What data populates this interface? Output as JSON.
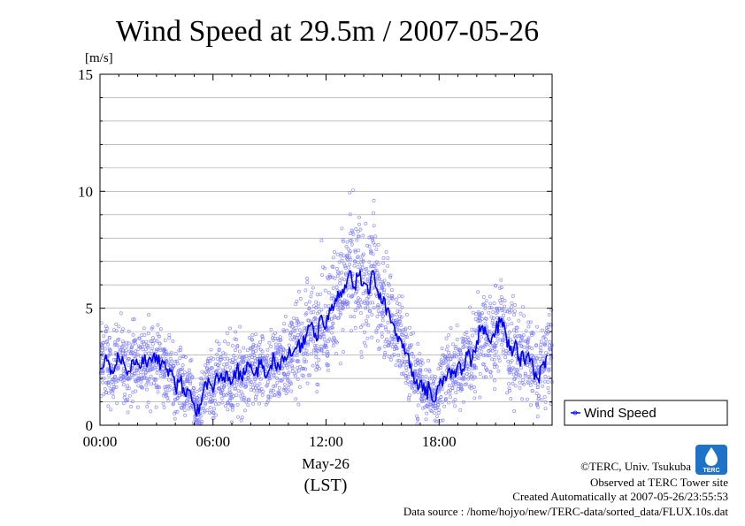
{
  "chart_data": {
    "type": "scatter",
    "title": "Wind Speed at 29.5m / 2007-05-26",
    "ylabel": "[m/s]",
    "xlabel_date": "May-26",
    "xlabel_tz": "(LST)",
    "ylim": [
      0,
      15
    ],
    "yticks": [
      0,
      5,
      10,
      15
    ],
    "xlim_hours": [
      0,
      24
    ],
    "xticks": [
      {
        "hour": 0,
        "label": "00:00"
      },
      {
        "hour": 6,
        "label": "06:00"
      },
      {
        "hour": 12,
        "label": "12:00"
      },
      {
        "hour": 18,
        "label": "18:00"
      }
    ],
    "grid": true,
    "legend": {
      "label": "Wind Speed",
      "placement": "bottom-right outside"
    },
    "colors": {
      "line": "#0000ff",
      "points": "#7a7aff",
      "grid": "#999999"
    },
    "series": [
      {
        "name": "Wind Speed",
        "x_hours": [
          0.0,
          0.25,
          0.5,
          0.75,
          1.0,
          1.25,
          1.5,
          1.75,
          2.0,
          2.25,
          2.5,
          2.75,
          3.0,
          3.25,
          3.5,
          3.75,
          4.0,
          4.25,
          4.5,
          4.75,
          5.0,
          5.25,
          5.5,
          5.75,
          6.0,
          6.25,
          6.5,
          6.75,
          7.0,
          7.25,
          7.5,
          7.75,
          8.0,
          8.25,
          8.5,
          8.75,
          9.0,
          9.25,
          9.5,
          9.75,
          10.0,
          10.25,
          10.5,
          10.75,
          11.0,
          11.25,
          11.5,
          11.75,
          12.0,
          12.25,
          12.5,
          12.75,
          13.0,
          13.25,
          13.5,
          13.75,
          14.0,
          14.25,
          14.5,
          14.75,
          15.0,
          15.25,
          15.5,
          15.75,
          16.0,
          16.25,
          16.5,
          16.75,
          17.0,
          17.25,
          17.5,
          17.75,
          18.0,
          18.25,
          18.5,
          18.75,
          19.0,
          19.25,
          19.5,
          19.75,
          20.0,
          20.25,
          20.5,
          20.75,
          21.0,
          21.25,
          21.5,
          21.75,
          22.0,
          22.25,
          22.5,
          22.75,
          23.0,
          23.25,
          23.5,
          23.75
        ],
        "values": [
          2.4,
          2.8,
          2.6,
          2.3,
          2.9,
          2.7,
          2.3,
          2.8,
          2.6,
          2.9,
          2.5,
          2.7,
          3.0,
          2.6,
          2.4,
          2.3,
          1.6,
          1.9,
          1.3,
          1.5,
          0.9,
          0.5,
          1.5,
          2.0,
          1.4,
          2.1,
          1.9,
          2.3,
          1.8,
          2.4,
          2.0,
          2.3,
          2.6,
          2.2,
          2.6,
          2.1,
          2.4,
          2.9,
          2.5,
          2.7,
          3.0,
          3.1,
          3.5,
          3.3,
          4.0,
          4.4,
          3.6,
          4.7,
          4.2,
          4.9,
          5.4,
          5.7,
          6.0,
          6.6,
          5.9,
          6.4,
          6.1,
          5.6,
          6.6,
          5.7,
          5.2,
          5.0,
          4.4,
          3.9,
          3.6,
          3.1,
          2.6,
          1.8,
          1.9,
          1.3,
          1.6,
          1.0,
          1.7,
          2.1,
          2.4,
          2.2,
          2.6,
          2.4,
          3.0,
          2.8,
          3.6,
          4.2,
          3.9,
          3.5,
          4.0,
          4.4,
          4.1,
          3.2,
          3.4,
          2.9,
          2.8,
          3.1,
          2.4,
          2.0,
          2.6,
          3.0
        ]
      }
    ]
  },
  "credits": {
    "copyright": "©TERC, Univ. Tsukuba",
    "site": "Observed at TERC Tower site",
    "created": "Created Automatically at 2007-05-26/23:55:53",
    "source": "Data source : /home/hojyo/new/TERC-data/sorted_data/FLUX.10s.dat",
    "logo_text": "TERC"
  }
}
